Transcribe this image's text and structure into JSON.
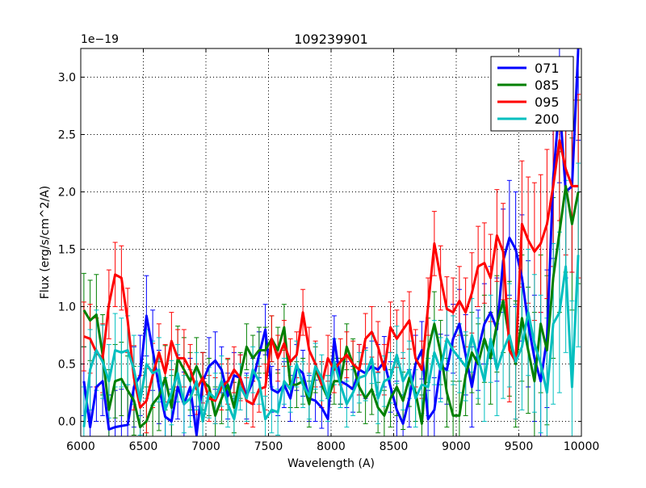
{
  "chart_data": {
    "type": "line",
    "title": "109239901",
    "xlabel": "Wavelength (A)",
    "ylabel": "Flux (erg/s/cm^2/A)",
    "y_offset_label": "1e−19",
    "xlim": [
      6000,
      10000
    ],
    "ylim": [
      -0.13,
      3.25
    ],
    "xticks": [
      6000,
      6500,
      7000,
      7500,
      8000,
      8500,
      9000,
      9500,
      10000
    ],
    "xtick_labels": [
      "6000",
      "6500",
      "7000",
      "7500",
      "8000",
      "8500",
      "9000",
      "9500",
      "10000"
    ],
    "yticks": [
      0.0,
      0.5,
      1.0,
      1.5,
      2.0,
      2.5,
      3.0
    ],
    "ytick_labels": [
      "0.0",
      "0.5",
      "1.0",
      "1.5",
      "2.0",
      "2.5",
      "3.0"
    ],
    "grid": true,
    "legend_position": "top-right",
    "series": [
      {
        "name": "071",
        "color": "#0000ff",
        "x": [
          6025,
          6075,
          6125,
          6175,
          6225,
          6275,
          6325,
          6375,
          6425,
          6475,
          6525,
          6575,
          6625,
          6675,
          6725,
          6775,
          6825,
          6875,
          6925,
          6975,
          7025,
          7075,
          7125,
          7175,
          7225,
          7275,
          7325,
          7375,
          7425,
          7475,
          7525,
          7575,
          7625,
          7675,
          7725,
          7775,
          7825,
          7875,
          7925,
          7975,
          8025,
          8075,
          8125,
          8175,
          8225,
          8275,
          8325,
          8375,
          8425,
          8475,
          8525,
          8575,
          8625,
          8675,
          8725,
          8775,
          8825,
          8875,
          8925,
          8975,
          9025,
          9075,
          9125,
          9175,
          9225,
          9275,
          9325,
          9375,
          9425,
          9475,
          9525,
          9575,
          9625,
          9675,
          9725,
          9775,
          9825,
          9875,
          9925,
          9975
        ],
        "y": [
          0.35,
          -0.05,
          0.3,
          0.35,
          -0.07,
          -0.05,
          -0.04,
          -0.03,
          0.3,
          0.4,
          0.92,
          0.62,
          0.3,
          0.04,
          0.0,
          0.3,
          0.15,
          0.3,
          -0.12,
          0.35,
          0.48,
          0.53,
          0.45,
          0.22,
          0.4,
          0.38,
          0.22,
          0.35,
          0.58,
          0.8,
          0.28,
          0.25,
          0.32,
          0.2,
          0.47,
          0.42,
          0.2,
          0.18,
          0.12,
          0.02,
          0.72,
          0.35,
          0.32,
          0.28,
          0.45,
          0.42,
          0.48,
          0.45,
          0.52,
          0.3,
          0.1,
          -0.02,
          0.2,
          0.5,
          0.62,
          0.02,
          0.1,
          0.48,
          0.45,
          0.72,
          0.85,
          0.58,
          0.3,
          0.62,
          0.85,
          0.95,
          0.8,
          1.4,
          1.6,
          1.5,
          1.25,
          0.85,
          0.55,
          0.35,
          0.72,
          2.12,
          2.78,
          2.0,
          2.05,
          3.25
        ],
        "err": [
          0.3,
          0.35,
          0.3,
          0.3,
          0.3,
          0.32,
          0.32,
          0.35,
          0.35,
          0.35,
          0.35,
          0.35,
          0.32,
          0.28,
          0.28,
          0.28,
          0.28,
          0.25,
          0.25,
          0.25,
          0.25,
          0.25,
          0.2,
          0.2,
          0.2,
          0.2,
          0.2,
          0.2,
          0.2,
          0.22,
          0.2,
          0.2,
          0.2,
          0.2,
          0.2,
          0.2,
          0.2,
          0.18,
          0.18,
          0.18,
          0.2,
          0.2,
          0.2,
          0.2,
          0.22,
          0.22,
          0.22,
          0.22,
          0.22,
          0.22,
          0.25,
          0.25,
          0.25,
          0.25,
          0.25,
          0.25,
          0.28,
          0.28,
          0.3,
          0.3,
          0.3,
          0.35,
          0.35,
          0.35,
          0.35,
          0.4,
          0.45,
          0.45,
          0.5,
          0.5,
          0.55,
          0.55,
          0.55,
          0.6,
          0.6,
          0.7,
          0.7,
          0.75,
          0.75,
          0.8
        ]
      },
      {
        "name": "085",
        "color": "#008000",
        "x": [
          6025,
          6075,
          6125,
          6175,
          6225,
          6275,
          6325,
          6375,
          6425,
          6475,
          6525,
          6575,
          6625,
          6675,
          6725,
          6775,
          6825,
          6875,
          6925,
          6975,
          7025,
          7075,
          7125,
          7175,
          7225,
          7275,
          7325,
          7375,
          7425,
          7475,
          7525,
          7575,
          7625,
          7675,
          7725,
          7775,
          7825,
          7875,
          7925,
          7975,
          8025,
          8075,
          8125,
          8175,
          8225,
          8275,
          8325,
          8375,
          8425,
          8475,
          8525,
          8575,
          8625,
          8675,
          8725,
          8775,
          8825,
          8875,
          8925,
          8975,
          9025,
          9075,
          9125,
          9175,
          9225,
          9275,
          9325,
          9375,
          9425,
          9475,
          9525,
          9575,
          9625,
          9675,
          9725,
          9775,
          9825,
          9875,
          9925,
          9975
        ],
        "y": [
          0.97,
          0.88,
          0.93,
          0.58,
          0.1,
          0.35,
          0.37,
          0.27,
          0.18,
          -0.05,
          0.0,
          0.15,
          0.22,
          0.38,
          0.12,
          0.55,
          0.45,
          0.35,
          0.48,
          0.35,
          0.3,
          0.05,
          0.2,
          0.32,
          0.12,
          0.4,
          0.65,
          0.55,
          0.62,
          0.62,
          0.72,
          0.62,
          0.82,
          0.32,
          0.32,
          0.35,
          0.15,
          0.45,
          0.32,
          0.2,
          0.35,
          0.35,
          0.65,
          0.5,
          0.3,
          0.2,
          0.28,
          0.12,
          0.05,
          0.2,
          0.3,
          0.18,
          0.38,
          0.25,
          -0.02,
          0.62,
          0.85,
          0.6,
          0.25,
          0.05,
          0.05,
          0.4,
          0.6,
          0.5,
          0.72,
          0.55,
          0.85,
          1.05,
          0.72,
          0.5,
          0.9,
          0.62,
          0.35,
          0.85,
          0.62,
          1.25,
          1.65,
          2.05,
          1.72,
          2.0
        ],
        "err": [
          0.32,
          0.35,
          0.35,
          0.35,
          0.35,
          0.32,
          0.32,
          0.3,
          0.3,
          0.3,
          0.3,
          0.3,
          0.3,
          0.28,
          0.28,
          0.28,
          0.28,
          0.25,
          0.25,
          0.25,
          0.25,
          0.25,
          0.22,
          0.22,
          0.22,
          0.2,
          0.2,
          0.2,
          0.2,
          0.2,
          0.2,
          0.2,
          0.2,
          0.2,
          0.2,
          0.2,
          0.2,
          0.2,
          0.2,
          0.2,
          0.2,
          0.2,
          0.2,
          0.22,
          0.22,
          0.22,
          0.22,
          0.22,
          0.22,
          0.25,
          0.25,
          0.25,
          0.25,
          0.25,
          0.25,
          0.28,
          0.28,
          0.28,
          0.3,
          0.3,
          0.3,
          0.35,
          0.35,
          0.35,
          0.38,
          0.4,
          0.42,
          0.45,
          0.5,
          0.55,
          0.55,
          0.55,
          0.6,
          0.6,
          0.65,
          0.7,
          0.7,
          0.75,
          0.75,
          0.8
        ]
      },
      {
        "name": "095",
        "color": "#ff0000",
        "x": [
          6025,
          6075,
          6125,
          6175,
          6225,
          6275,
          6325,
          6375,
          6425,
          6475,
          6525,
          6575,
          6625,
          6675,
          6725,
          6775,
          6825,
          6875,
          6925,
          6975,
          7025,
          7075,
          7125,
          7175,
          7225,
          7275,
          7325,
          7375,
          7425,
          7475,
          7525,
          7575,
          7625,
          7675,
          7725,
          7775,
          7825,
          7875,
          7925,
          7975,
          8025,
          8075,
          8125,
          8175,
          8225,
          8275,
          8325,
          8375,
          8425,
          8475,
          8525,
          8575,
          8625,
          8675,
          8725,
          8775,
          8825,
          8875,
          8925,
          8975,
          9025,
          9075,
          9125,
          9175,
          9225,
          9275,
          9325,
          9375,
          9425,
          9475,
          9525,
          9575,
          9625,
          9675,
          9725,
          9775,
          9825,
          9875,
          9925,
          9975
        ],
        "y": [
          0.74,
          0.72,
          0.6,
          0.55,
          1.02,
          1.28,
          1.25,
          0.88,
          0.38,
          0.12,
          0.18,
          0.4,
          0.6,
          0.42,
          0.7,
          0.55,
          0.55,
          0.45,
          0.28,
          0.38,
          0.2,
          0.18,
          0.3,
          0.35,
          0.45,
          0.38,
          0.18,
          0.15,
          0.28,
          0.3,
          0.72,
          0.55,
          0.68,
          0.52,
          0.58,
          0.95,
          0.62,
          0.5,
          0.32,
          0.55,
          0.45,
          0.52,
          0.58,
          0.5,
          0.45,
          0.72,
          0.78,
          0.65,
          0.45,
          0.82,
          0.72,
          0.8,
          0.88,
          0.55,
          0.45,
          1.0,
          1.55,
          1.25,
          0.98,
          0.95,
          1.05,
          0.95,
          1.12,
          1.35,
          1.38,
          1.25,
          1.62,
          1.48,
          0.62,
          0.52,
          1.72,
          1.58,
          1.48,
          1.55,
          1.72,
          2.05,
          2.45,
          2.2,
          2.05,
          2.05
        ],
        "err": [
          0.3,
          0.3,
          0.3,
          0.3,
          0.3,
          0.28,
          0.28,
          0.28,
          0.28,
          0.28,
          0.28,
          0.28,
          0.25,
          0.25,
          0.25,
          0.25,
          0.25,
          0.22,
          0.22,
          0.22,
          0.2,
          0.2,
          0.2,
          0.2,
          0.2,
          0.2,
          0.2,
          0.2,
          0.2,
          0.2,
          0.2,
          0.2,
          0.2,
          0.2,
          0.2,
          0.2,
          0.2,
          0.2,
          0.2,
          0.2,
          0.2,
          0.2,
          0.2,
          0.2,
          0.22,
          0.22,
          0.22,
          0.22,
          0.22,
          0.22,
          0.25,
          0.25,
          0.25,
          0.25,
          0.25,
          0.25,
          0.28,
          0.28,
          0.28,
          0.3,
          0.3,
          0.3,
          0.35,
          0.35,
          0.35,
          0.38,
          0.4,
          0.42,
          0.45,
          0.5,
          0.55,
          0.55,
          0.6,
          0.6,
          0.65,
          0.7,
          0.7,
          0.75,
          0.75,
          0.8
        ]
      },
      {
        "name": "200",
        "color": "#00bfbf",
        "x": [
          6025,
          6075,
          6125,
          6175,
          6225,
          6275,
          6325,
          6375,
          6425,
          6475,
          6525,
          6575,
          6625,
          6675,
          6725,
          6775,
          6825,
          6875,
          6925,
          6975,
          7025,
          7075,
          7125,
          7175,
          7225,
          7275,
          7325,
          7375,
          7425,
          7475,
          7525,
          7575,
          7625,
          7675,
          7725,
          7775,
          7825,
          7875,
          7925,
          7975,
          8025,
          8075,
          8125,
          8175,
          8225,
          8275,
          8325,
          8375,
          8425,
          8475,
          8525,
          8575,
          8625,
          8675,
          8725,
          8775,
          8825,
          8875,
          8925,
          8975,
          9025,
          9075,
          9125,
          9175,
          9225,
          9275,
          9325,
          9375,
          9425,
          9475,
          9525,
          9575,
          9625,
          9675,
          9725,
          9775,
          9825,
          9875,
          9925,
          9975
        ],
        "y": [
          -0.05,
          0.45,
          0.62,
          0.52,
          0.35,
          0.62,
          0.6,
          0.62,
          0.45,
          0.18,
          0.5,
          0.42,
          0.45,
          0.1,
          0.25,
          0.42,
          0.15,
          0.2,
          0.35,
          0.0,
          0.25,
          0.2,
          0.35,
          0.15,
          0.02,
          0.3,
          0.2,
          0.45,
          0.35,
          0.02,
          0.1,
          0.08,
          0.35,
          0.28,
          0.5,
          0.32,
          0.22,
          0.48,
          0.38,
          0.2,
          0.52,
          0.32,
          0.15,
          0.25,
          0.38,
          0.4,
          0.55,
          0.2,
          0.35,
          0.38,
          0.58,
          0.35,
          0.45,
          0.2,
          0.32,
          0.3,
          0.6,
          0.45,
          0.72,
          0.62,
          0.55,
          0.48,
          0.75,
          0.55,
          0.35,
          0.72,
          0.45,
          0.62,
          0.75,
          0.52,
          0.65,
          0.95,
          0.68,
          0.5,
          0.25,
          0.85,
          0.95,
          1.35,
          0.3,
          1.45
        ],
        "err": [
          0.35,
          0.35,
          0.35,
          0.32,
          0.32,
          0.32,
          0.3,
          0.3,
          0.3,
          0.3,
          0.3,
          0.28,
          0.28,
          0.28,
          0.28,
          0.25,
          0.25,
          0.25,
          0.25,
          0.22,
          0.22,
          0.22,
          0.22,
          0.2,
          0.2,
          0.2,
          0.2,
          0.2,
          0.2,
          0.2,
          0.2,
          0.2,
          0.2,
          0.2,
          0.2,
          0.2,
          0.2,
          0.2,
          0.2,
          0.2,
          0.2,
          0.2,
          0.2,
          0.2,
          0.22,
          0.22,
          0.22,
          0.22,
          0.22,
          0.22,
          0.25,
          0.25,
          0.25,
          0.25,
          0.25,
          0.25,
          0.28,
          0.28,
          0.28,
          0.3,
          0.3,
          0.3,
          0.32,
          0.35,
          0.35,
          0.38,
          0.4,
          0.42,
          0.45,
          0.5,
          0.55,
          0.55,
          0.6,
          0.6,
          0.65,
          0.7,
          0.7,
          0.75,
          0.75,
          0.8
        ]
      }
    ]
  }
}
